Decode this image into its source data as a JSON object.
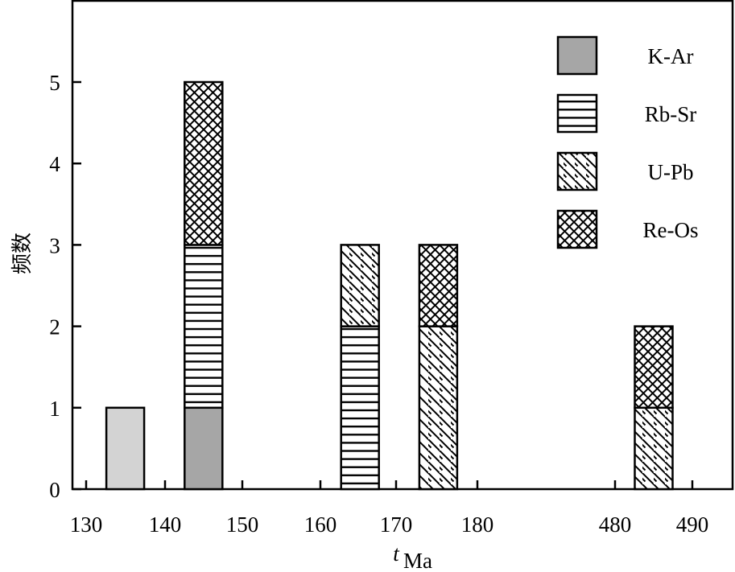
{
  "chart_data": {
    "type": "bar",
    "stacked": true,
    "xlabel": "t",
    "xlabel_subscript": "Ma",
    "ylabel": "频数",
    "ylim": [
      0,
      6
    ],
    "yticks": [
      0,
      1,
      2,
      3,
      4,
      5
    ],
    "xticks": [
      "130",
      "140",
      "150",
      "160",
      "170",
      "180",
      "480",
      "490"
    ],
    "legend_position": "top-right",
    "legend": [
      {
        "key": "K-Ar",
        "label": "K-Ar",
        "pattern": "solid-gray",
        "color": "#a6a6a6"
      },
      {
        "key": "Rb-Sr",
        "label": "Rb-Sr",
        "pattern": "horizontal-lines"
      },
      {
        "key": "U-Pb",
        "label": "U-Pb",
        "pattern": "diagonal-lines"
      },
      {
        "key": "Re-Os",
        "label": "Re-Os",
        "pattern": "crosshatch"
      }
    ],
    "bars": [
      {
        "x": 135,
        "segments": [
          {
            "method": "unlabeled",
            "value": 1,
            "color": "#d3d3d3"
          }
        ]
      },
      {
        "x": 145,
        "segments": [
          {
            "method": "K-Ar",
            "value": 1
          },
          {
            "method": "Rb-Sr",
            "value": 2
          },
          {
            "method": "Re-Os",
            "value": 2
          }
        ]
      },
      {
        "x": 165,
        "segments": [
          {
            "method": "Rb-Sr",
            "value": 2
          },
          {
            "method": "U-Pb",
            "value": 1
          }
        ]
      },
      {
        "x": 175,
        "segments": [
          {
            "method": "U-Pb",
            "value": 2
          },
          {
            "method": "Re-Os",
            "value": 1
          }
        ]
      },
      {
        "x": 485,
        "segments": [
          {
            "method": "U-Pb",
            "value": 1
          },
          {
            "method": "Re-Os",
            "value": 1
          }
        ]
      }
    ]
  }
}
